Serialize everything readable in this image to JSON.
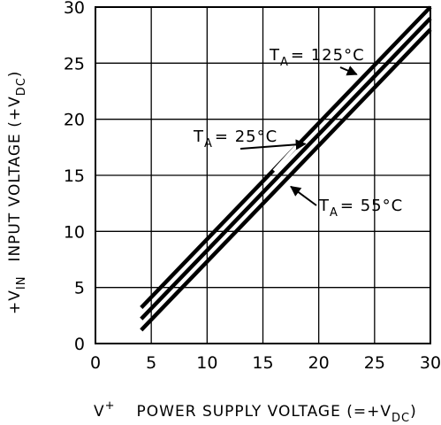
{
  "chart_data": {
    "type": "line",
    "xlabel_prefix": "V",
    "xlabel_prefix_sup": "+",
    "xlabel_main": "POWER SUPPLY VOLTAGE (=+V",
    "xlabel_sub": "DC",
    "xlabel_end": ")",
    "ylabel_prefix": "+V",
    "ylabel_prefix_sub": "IN",
    "ylabel_main": "INPUT VOLTAGE (+V",
    "ylabel_sub": "DC",
    "ylabel_end": ")",
    "xlim": [
      0,
      30
    ],
    "ylim": [
      0,
      30
    ],
    "xticks": [
      "0",
      "5",
      "10",
      "15",
      "20",
      "25",
      "30"
    ],
    "yticks": [
      "0",
      "5",
      "10",
      "15",
      "20",
      "25",
      "30"
    ],
    "grid": true,
    "series": [
      {
        "name": "T_A = 125°C",
        "x": [
          4.1,
          30.0
        ],
        "y": [
          3.2,
          30.0
        ]
      },
      {
        "name": "T_A = 25°C",
        "x": [
          4.1,
          30.0
        ],
        "y": [
          2.2,
          29.0
        ]
      },
      {
        "name": "T_A = 55°C",
        "x": [
          4.1,
          30.0
        ],
        "y": [
          1.2,
          28.0
        ]
      }
    ],
    "annotations": [
      {
        "prefix": "T",
        "sub": "A",
        "text": "= 125°C"
      },
      {
        "prefix": "T",
        "sub": "A",
        "text": "= 25°C"
      },
      {
        "prefix": "T",
        "sub": "A",
        "text": "= 55°C"
      }
    ]
  }
}
